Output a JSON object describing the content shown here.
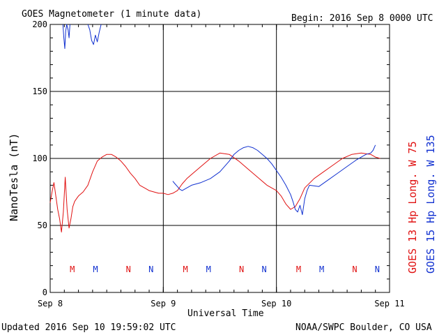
{
  "chart_data": {
    "type": "line",
    "title": "GOES Magnetometer (1 minute data)",
    "begin_label": "Begin:  2016 Sep 8 0000 UTC",
    "xlabel": "Universal Time",
    "ylabel": "NanoTesla (nT)",
    "x_ticks": [
      "Sep 8",
      "Sep 9",
      "Sep 10",
      "Sep 11"
    ],
    "y_ticks": [
      "0",
      "50",
      "100",
      "150",
      "200"
    ],
    "xlim": [
      0,
      72
    ],
    "ylim": [
      0,
      200
    ],
    "grid": true,
    "series": [
      {
        "name": "GOES 13 Hp  Long. W 75",
        "color": "#e01010",
        "x_hours": [
          0,
          0.4,
          0.8,
          1.2,
          1.6,
          2.0,
          2.4,
          2.8,
          3.2,
          3.6,
          4.0,
          4.4,
          4.8,
          5.2,
          5.6,
          6.0,
          7.0,
          8.0,
          9.0,
          10.0,
          11.0,
          12.0,
          13.0,
          14.0,
          15.0,
          16.0,
          17.0,
          18.0,
          19.0,
          20.0,
          21.0,
          22.0,
          23.0,
          24.0,
          25.0,
          26.0,
          27.0,
          28.0,
          29.0,
          30.0,
          32.0,
          34.0,
          36.0,
          38.0,
          40.0,
          42.0,
          44.0,
          46.0,
          48.0,
          49.0,
          50.0,
          51.0,
          52.0,
          53.0,
          54.0,
          56.0,
          58.0,
          60.0,
          62.0,
          64.0,
          66.0,
          68.0,
          69.0,
          70.0
        ],
        "values": [
          67,
          75,
          82,
          72,
          62,
          55,
          45,
          60,
          86,
          62,
          48,
          55,
          64,
          68,
          70,
          72,
          75,
          80,
          90,
          98,
          101,
          103,
          103,
          101,
          98,
          94,
          89,
          85,
          80,
          78,
          76,
          75,
          74,
          74,
          73,
          74,
          76,
          81,
          85,
          88,
          94,
          100,
          104,
          103,
          98,
          92,
          86,
          80,
          76,
          72,
          66,
          62,
          64,
          70,
          78,
          85,
          90,
          95,
          100,
          103,
          104,
          103,
          101,
          100
        ]
      },
      {
        "name": "GOES 15 Hp  Long. W 135",
        "color": "#1030d0",
        "segments": [
          {
            "x_hours": [
              2.7,
              2.9,
              3.1,
              3.3,
              3.5,
              3.8,
              4.0,
              4.2
            ],
            "values": [
              200,
              190,
              182,
              195,
              200,
              196,
              190,
              200
            ]
          },
          {
            "x_hours": [
              8.0,
              8.4,
              8.8,
              9.2,
              9.6,
              10.0,
              10.4,
              10.8
            ],
            "values": [
              200,
              196,
              188,
              185,
              192,
              187,
              194,
              200
            ]
          },
          {
            "x_hours": [
              26.0,
              26.5,
              27.0,
              27.5,
              28.0,
              29.0,
              30.0,
              32.0,
              34.0,
              36.0,
              38.0,
              39.0,
              40.0,
              41.0,
              42.0,
              43.0,
              44.0,
              45.0,
              46.0,
              47.0,
              48.0,
              49.0,
              50.0,
              51.0,
              51.5,
              52.0,
              52.5,
              53.0,
              53.5,
              54.0,
              54.5,
              55.0,
              57.0,
              59.0,
              61.0,
              63.0,
              65.0,
              66.0,
              67.0,
              68.0,
              68.5,
              69.0
            ],
            "values": [
              83,
              81,
              79,
              77,
              76,
              78,
              80,
              82,
              85,
              90,
              98,
              103,
              106,
              108,
              109,
              108,
              106,
              103,
              100,
              96,
              91,
              86,
              80,
              73,
              68,
              62,
              60,
              65,
              58,
              70,
              76,
              80,
              79,
              84,
              89,
              94,
              99,
              101,
              103,
              104,
              106,
              110
            ]
          }
        ]
      }
    ],
    "markers": [
      {
        "label": "M",
        "x_hours": 4.7,
        "color": "#e01010"
      },
      {
        "label": "M",
        "x_hours": 9.6,
        "color": "#1030d0"
      },
      {
        "label": "N",
        "x_hours": 16.6,
        "color": "#e01010"
      },
      {
        "label": "N",
        "x_hours": 21.4,
        "color": "#1030d0"
      },
      {
        "label": "M",
        "x_hours": 28.7,
        "color": "#e01010"
      },
      {
        "label": "M",
        "x_hours": 33.6,
        "color": "#1030d0"
      },
      {
        "label": "N",
        "x_hours": 40.6,
        "color": "#e01010"
      },
      {
        "label": "N",
        "x_hours": 45.4,
        "color": "#1030d0"
      },
      {
        "label": "M",
        "x_hours": 52.7,
        "color": "#e01010"
      },
      {
        "label": "M",
        "x_hours": 57.6,
        "color": "#1030d0"
      },
      {
        "label": "N",
        "x_hours": 64.6,
        "color": "#e01010"
      },
      {
        "label": "N",
        "x_hours": 69.4,
        "color": "#1030d0"
      }
    ]
  },
  "side_labels": {
    "goes13": "GOES 13 Hp  Long. W 75",
    "goes15": "GOES 15 Hp  Long. W 135"
  },
  "footer": {
    "updated": "Updated 2016 Sep 10 19:59:02 UTC",
    "credit": "NOAA/SWPC Boulder, CO USA"
  }
}
